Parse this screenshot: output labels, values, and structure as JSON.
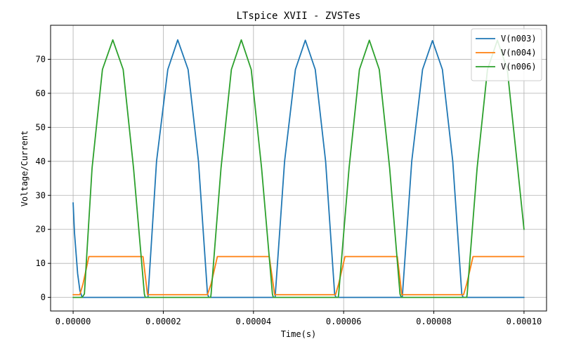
{
  "chart_data": {
    "type": "line",
    "title": "LTspice XVII - ZVSTes",
    "xlabel": "Time(s)",
    "ylabel": "Voltage/Current",
    "xlim": [
      -5e-06,
      0.000105
    ],
    "ylim": [
      -4,
      80
    ],
    "xticks": [
      0,
      2e-05,
      4e-05,
      6e-05,
      8e-05,
      0.0001
    ],
    "xtick_labels": [
      "0.00000",
      "0.00002",
      "0.00004",
      "0.00006",
      "0.00008",
      "0.00010"
    ],
    "yticks": [
      0,
      10,
      20,
      30,
      40,
      50,
      60,
      70
    ],
    "ytick_labels": [
      "0",
      "10",
      "20",
      "30",
      "40",
      "50",
      "60",
      "70"
    ],
    "grid": true,
    "legend_position": "top-right",
    "series": [
      {
        "name": "V(n003)",
        "color": "#1f77b4",
        "x": [
          0,
          3e-07,
          1e-06,
          1.5e-06,
          2e-06,
          1.63e-05,
          1.66e-05,
          1.85e-05,
          2.1e-05,
          2.32e-05,
          2.55e-05,
          2.78e-05,
          2.98e-05,
          3.01e-05,
          4.45e-05,
          4.48e-05,
          4.69e-05,
          4.93e-05,
          5.15e-05,
          5.37e-05,
          5.6e-05,
          5.8e-05,
          5.83e-05,
          7.27e-05,
          7.3e-05,
          7.51e-05,
          7.75e-05,
          7.97e-05,
          8.19e-05,
          8.42e-05,
          8.62e-05,
          8.65e-05,
          0.0001
        ],
        "y": [
          27.8,
          19,
          7,
          2,
          0,
          0,
          0,
          40,
          67,
          75.7,
          67,
          40,
          1,
          0,
          0,
          0,
          40,
          67,
          75.6,
          67,
          40,
          1,
          0,
          0,
          0,
          40,
          67,
          75.5,
          67,
          40,
          1,
          0,
          0
        ]
      },
      {
        "name": "V(n004)",
        "color": "#ff7f0e",
        "x": [
          0,
          1.5e-06,
          2.2e-06,
          3.5e-06,
          1.55e-05,
          1.65e-05,
          2.98e-05,
          3.06e-05,
          3.2e-05,
          4.35e-05,
          4.47e-05,
          5.82e-05,
          5.89e-05,
          6.03e-05,
          7.19e-05,
          7.29e-05,
          8.66e-05,
          8.73e-05,
          8.87e-05,
          0.0001
        ],
        "y": [
          0.8,
          0.8,
          4,
          12,
          12,
          0.8,
          0.8,
          4,
          12,
          12,
          0.8,
          0.8,
          4,
          12,
          12,
          0.8,
          0.8,
          4,
          12,
          12
        ]
      },
      {
        "name": "V(n006)",
        "color": "#2ca02c",
        "x": [
          0,
          2e-06,
          2.5e-06,
          4.2e-06,
          6.5e-06,
          8.8e-06,
          1.11e-05,
          1.34e-05,
          1.58e-05,
          1.6e-05,
          3.05e-05,
          3.06e-05,
          3.28e-05,
          3.51e-05,
          3.73e-05,
          3.95e-05,
          4.18e-05,
          4.42e-05,
          4.44e-05,
          5.88e-05,
          5.89e-05,
          6.12e-05,
          6.35e-05,
          6.57e-05,
          6.79e-05,
          7.02e-05,
          7.25e-05,
          7.28e-05,
          8.73e-05,
          8.74e-05,
          8.96e-05,
          9.19e-05,
          9.41e-05,
          9.63e-05,
          9.86e-05,
          0.0001
        ],
        "y": [
          0,
          0,
          1,
          38,
          67,
          75.7,
          67,
          38,
          1,
          0,
          0,
          1,
          38,
          67,
          75.7,
          67,
          38,
          1,
          0,
          0,
          1,
          38,
          67,
          75.6,
          67,
          38,
          1,
          0,
          0,
          1,
          38,
          67,
          75.6,
          67,
          38,
          20
        ]
      }
    ]
  }
}
